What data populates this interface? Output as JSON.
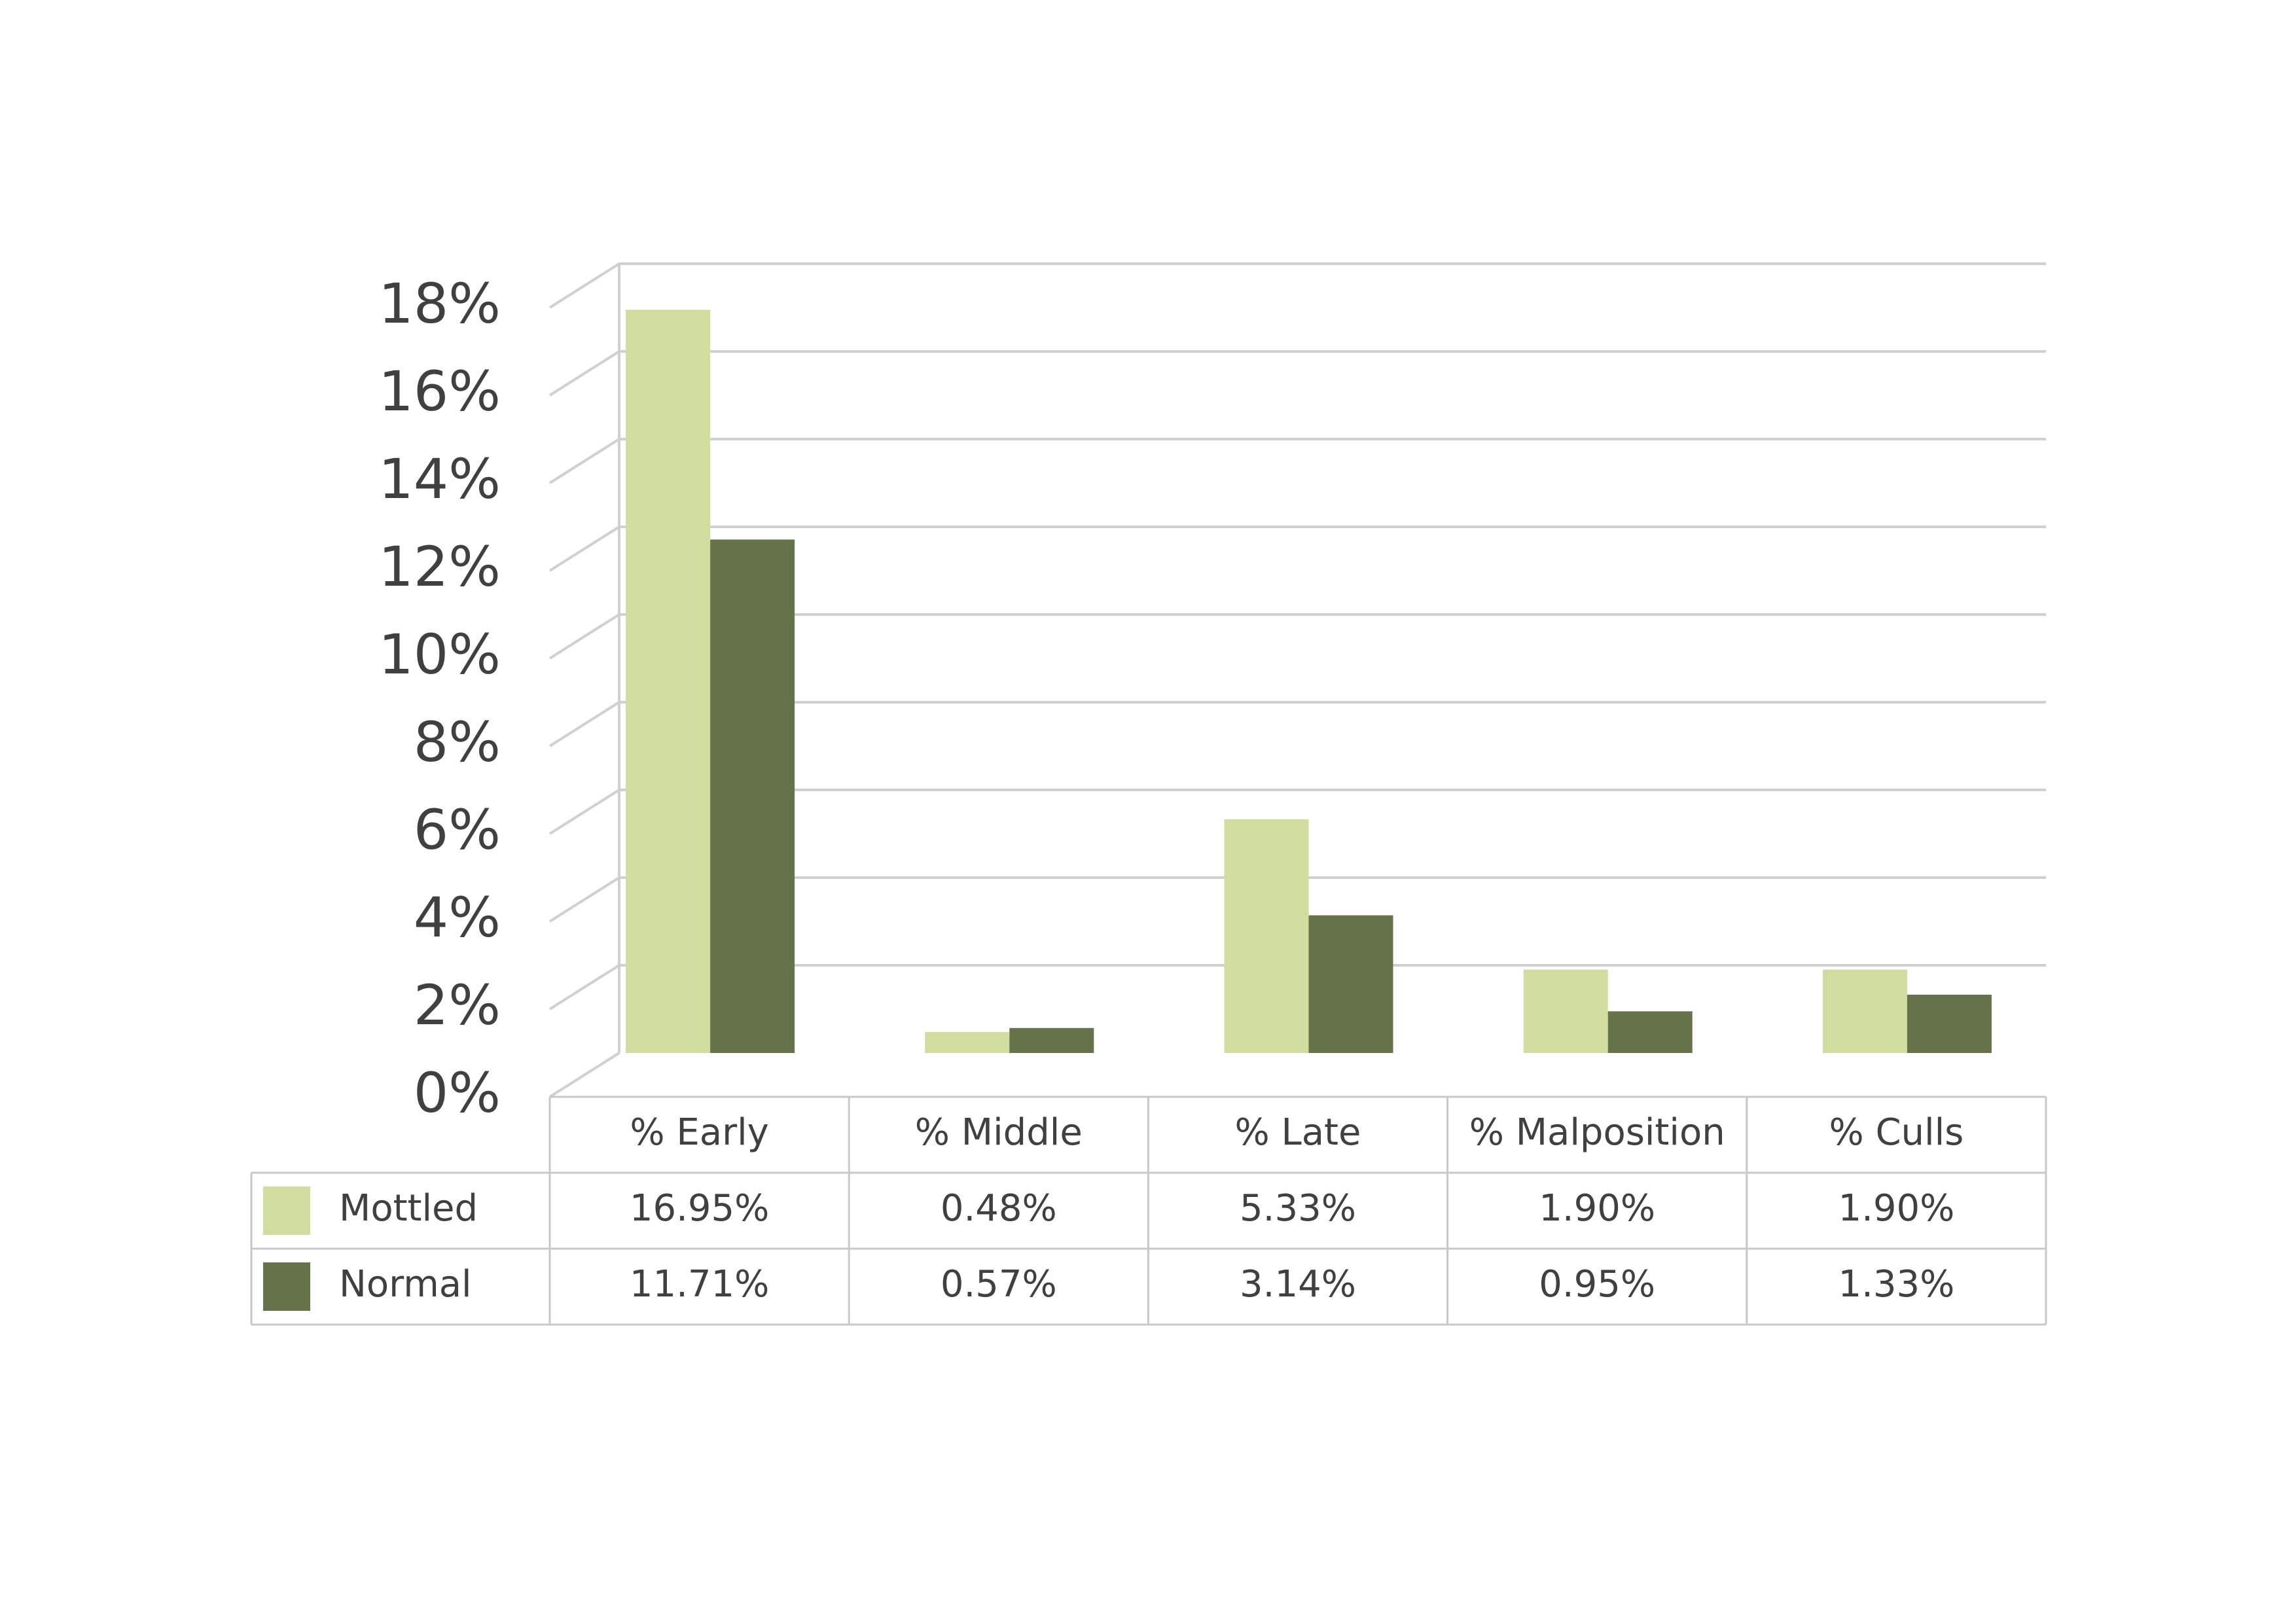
{
  "chart_data": {
    "type": "bar",
    "categories": [
      "% Early",
      "% Middle",
      "% Late",
      "% Malposition",
      "% Culls"
    ],
    "series": [
      {
        "name": "Mottled",
        "values": [
          16.95,
          0.48,
          5.33,
          1.9,
          1.9
        ],
        "labels": [
          "16.95%",
          "0.48%",
          "5.33%",
          "1.90%",
          "1.90%"
        ],
        "color": "#d0dd9e"
      },
      {
        "name": "Normal",
        "values": [
          11.71,
          0.57,
          3.14,
          0.95,
          1.33
        ],
        "labels": [
          "11.71%",
          "0.57%",
          "3.14%",
          "0.95%",
          "1.33%"
        ],
        "color": "#65724a"
      }
    ],
    "y_ticks": [
      "0%",
      "2%",
      "4%",
      "6%",
      "8%",
      "10%",
      "12%",
      "14%",
      "16%",
      "18%"
    ],
    "ylim": [
      0,
      18
    ],
    "unit": "%",
    "grid": true,
    "data_table": true
  }
}
